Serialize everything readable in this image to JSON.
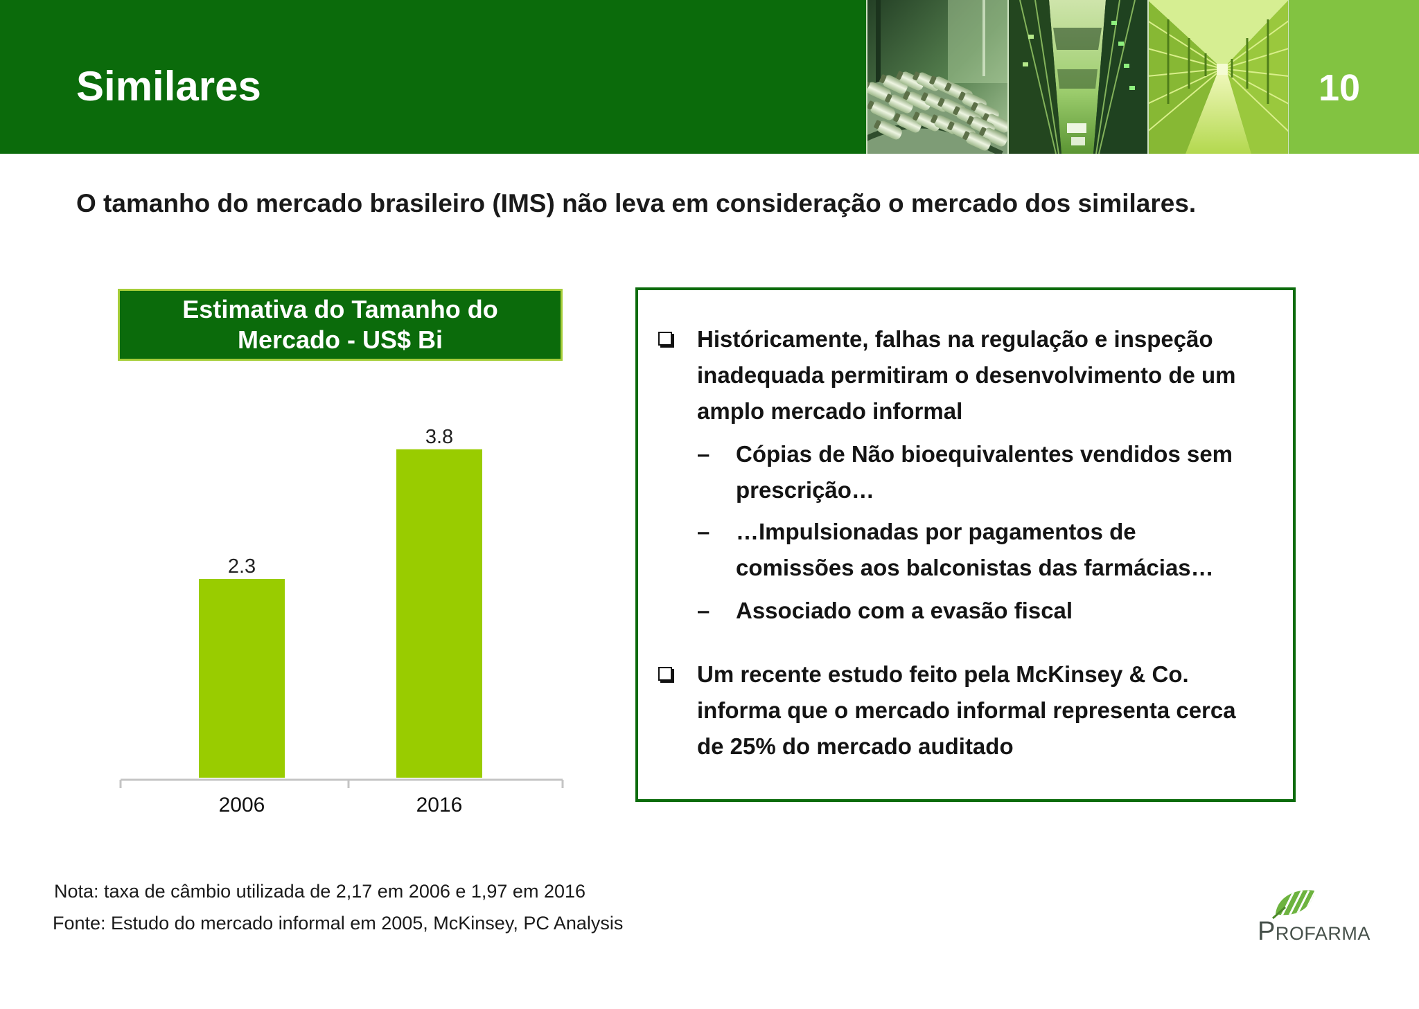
{
  "header": {
    "title": "Similares",
    "page_number": "10"
  },
  "subtitle": "O tamanho do mercado brasileiro (IMS) não leva em consideração o mercado dos similares.",
  "chart_data": {
    "type": "bar",
    "title": "Estimativa do Tamanho do Mercado - US$ Bi",
    "categories": [
      "2006",
      "2016"
    ],
    "values": [
      2.3,
      3.8
    ],
    "data_labels": true,
    "grid": false,
    "legend": "none"
  },
  "textbox": {
    "sub_marker": "–",
    "bullets": [
      {
        "text": "Históricamente, falhas na regulação e inspeção inadequada permitiram o desenvolvimento de um amplo mercado informal",
        "subbullets": [
          "Cópias de Não bioequivalentes vendidos sem prescrição…",
          "…Impulsionadas por pagamentos de comissões aos balconistas das farmácias…",
          "Associado com a evasão fiscal"
        ]
      },
      {
        "text": "Um recente estudo feito pela McKinsey & Co. informa que o mercado informal representa cerca de 25% do mercado auditado",
        "subbullets": []
      }
    ]
  },
  "footer": {
    "note": "Nota: taxa de câmbio utilizada de 2,17 em 2006 e 1,97 em 2016",
    "source": "Fonte: Estudo do mercado informal em 2005, McKinsey, PC Analysis"
  },
  "logo": {
    "text": "PROFARMA"
  },
  "icons": {
    "bullet": "checkbox-icon",
    "logo": "leaf-logo-icon"
  },
  "colors": {
    "header_green": "#0b6b0b",
    "accent_green": "#82c341",
    "bar": "#99cc00",
    "title_border": "#a6ce39"
  }
}
